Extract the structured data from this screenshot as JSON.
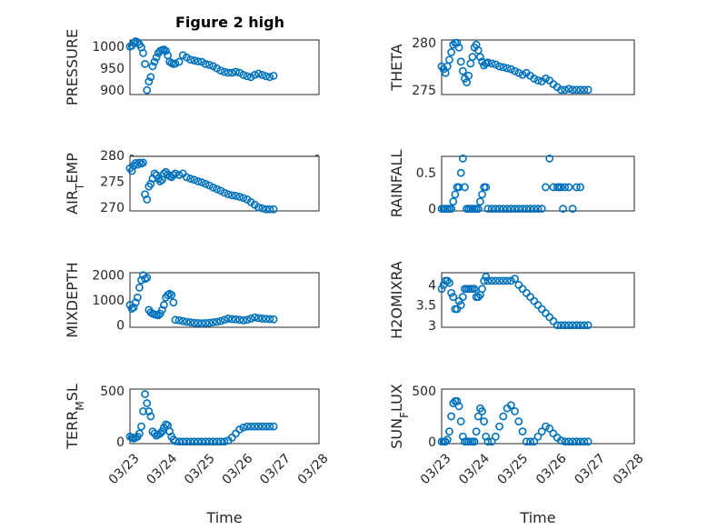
{
  "figure_title": "Figure 2 high",
  "colors": {
    "marker": "#0072BD"
  },
  "chart_data": [
    {
      "type": "scatter",
      "title": "Figure 2 high",
      "ylabel": "PRESSURE",
      "ylim": [
        890,
        1015
      ],
      "yticks": [
        900,
        950,
        1000
      ],
      "xlabel": "",
      "show_xticklabels": false,
      "x_start": "03/23",
      "x_end": "03/28",
      "grid": true,
      "x": [
        0,
        0.05,
        0.1,
        0.15,
        0.2,
        0.25,
        0.3,
        0.35,
        0.4,
        0.45,
        0.5,
        0.55,
        0.6,
        0.65,
        0.7,
        0.75,
        0.8,
        0.85,
        0.9,
        0.95,
        1.0,
        1.05,
        1.1,
        1.15,
        1.2,
        1.3,
        1.4,
        1.5,
        1.6,
        1.7,
        1.8,
        1.9,
        2.0,
        2.1,
        2.2,
        2.3,
        2.4,
        2.5,
        2.6,
        2.7,
        2.8,
        2.9,
        3.0,
        3.1,
        3.2,
        3.3,
        3.4,
        3.5,
        3.6,
        3.7,
        3.8
      ],
      "y": [
        1000,
        1002,
        1008,
        1012,
        1010,
        1005,
        998,
        985,
        960,
        900,
        920,
        930,
        955,
        965,
        975,
        985,
        990,
        992,
        993,
        990,
        980,
        965,
        962,
        960,
        961,
        965,
        980,
        975,
        970,
        968,
        966,
        965,
        960,
        958,
        955,
        950,
        945,
        942,
        940,
        940,
        942,
        940,
        935,
        932,
        930,
        935,
        938,
        935,
        932,
        930,
        933
      ]
    },
    {
      "type": "scatter",
      "ylabel": "THETA",
      "ylim": [
        274.5,
        280.3
      ],
      "yticks": [
        275,
        280
      ],
      "xlabel": "",
      "show_xticklabels": false,
      "x_start": "03/23",
      "x_end": "03/28",
      "grid": true,
      "x": [
        0,
        0.05,
        0.1,
        0.15,
        0.2,
        0.25,
        0.3,
        0.35,
        0.4,
        0.45,
        0.5,
        0.55,
        0.6,
        0.65,
        0.7,
        0.75,
        0.8,
        0.85,
        0.9,
        0.95,
        1.0,
        1.05,
        1.1,
        1.15,
        1.2,
        1.3,
        1.4,
        1.5,
        1.6,
        1.7,
        1.8,
        1.9,
        2.0,
        2.1,
        2.2,
        2.3,
        2.4,
        2.5,
        2.6,
        2.7,
        2.8,
        2.9,
        3.0,
        3.1,
        3.2,
        3.3,
        3.4,
        3.5,
        3.6,
        3.7,
        3.8
      ],
      "y": [
        277.5,
        277.2,
        276.8,
        277.5,
        278.2,
        279.0,
        279.8,
        280.0,
        280.0,
        279.5,
        278.0,
        277.0,
        276.2,
        275.8,
        276.5,
        277.8,
        278.5,
        279.5,
        279.8,
        279.2,
        278.5,
        278.0,
        277.6,
        277.8,
        277.9,
        277.8,
        277.7,
        277.5,
        277.4,
        277.3,
        277.2,
        277.0,
        276.8,
        276.6,
        276.8,
        276.5,
        276.2,
        276.0,
        275.9,
        276.2,
        276.0,
        275.6,
        275.3,
        275.0,
        275.0,
        275.1,
        275.0,
        275.0,
        275.0,
        275.0,
        275.0
      ]
    },
    {
      "type": "scatter",
      "ylabel": "AIR_TEMP",
      "ylim": [
        269.3,
        279.8
      ],
      "yticks": [
        270,
        275,
        280
      ],
      "xlabel": "",
      "show_xticklabels": false,
      "x_start": "03/23",
      "x_end": "03/28",
      "grid": true,
      "x": [
        0,
        0.05,
        0.1,
        0.15,
        0.2,
        0.25,
        0.3,
        0.35,
        0.4,
        0.45,
        0.5,
        0.55,
        0.6,
        0.65,
        0.7,
        0.75,
        0.8,
        0.85,
        0.9,
        0.95,
        1.0,
        1.05,
        1.1,
        1.15,
        1.2,
        1.3,
        1.4,
        1.5,
        1.6,
        1.7,
        1.8,
        1.9,
        2.0,
        2.1,
        2.2,
        2.3,
        2.4,
        2.5,
        2.6,
        2.7,
        2.8,
        2.9,
        3.0,
        3.1,
        3.2,
        3.3,
        3.4,
        3.5,
        3.6,
        3.7,
        3.8
      ],
      "y": [
        277.5,
        277.0,
        278.0,
        278.5,
        278.2,
        278.6,
        278.4,
        278.6,
        272.5,
        271.5,
        274.0,
        274.5,
        275.5,
        276.5,
        276.2,
        275.5,
        275.0,
        275.3,
        276.5,
        276.8,
        276.3,
        276.0,
        275.8,
        276.2,
        276.5,
        276.2,
        276.5,
        275.8,
        275.5,
        275.3,
        275.0,
        274.8,
        274.5,
        274.2,
        273.8,
        273.5,
        273.2,
        272.8,
        272.5,
        272.3,
        272.2,
        272.0,
        271.8,
        271.5,
        271.0,
        270.5,
        270.0,
        269.8,
        269.6,
        269.6,
        269.6
      ]
    },
    {
      "type": "scatter",
      "ylabel": "RAINFALL",
      "ylim": [
        -0.03,
        0.73
      ],
      "yticks": [
        0,
        0.5
      ],
      "xlabel": "",
      "show_xticklabels": false,
      "x_start": "03/23",
      "x_end": "03/28",
      "grid": true,
      "x": [
        0,
        0.05,
        0.1,
        0.15,
        0.2,
        0.25,
        0.3,
        0.35,
        0.4,
        0.45,
        0.5,
        0.55,
        0.6,
        0.65,
        0.7,
        0.75,
        0.8,
        0.85,
        0.9,
        0.95,
        1.0,
        1.05,
        1.1,
        1.15,
        1.2,
        1.3,
        1.4,
        1.5,
        1.6,
        1.7,
        1.8,
        1.9,
        2.0,
        2.1,
        2.2,
        2.3,
        2.4,
        2.5,
        2.6,
        2.7,
        2.8,
        2.9,
        3.0,
        3.05,
        3.1,
        3.15,
        3.2,
        3.3,
        3.4,
        3.5,
        3.6
      ],
      "y": [
        0,
        0,
        0,
        0,
        0,
        0,
        0.1,
        0.2,
        0.3,
        0.3,
        0.5,
        0.7,
        0.3,
        0,
        0,
        0,
        0,
        0,
        0,
        0,
        0.1,
        0.2,
        0.3,
        0.3,
        0,
        0,
        0,
        0,
        0,
        0,
        0,
        0,
        0,
        0,
        0,
        0,
        0,
        0,
        0,
        0.3,
        0.7,
        0.3,
        0.3,
        0.3,
        0.3,
        0,
        0.3,
        0.3,
        0,
        0.3,
        0.3
      ]
    },
    {
      "type": "scatter",
      "ylabel": "MIXDEPTH",
      "ylim": [
        -100,
        2100
      ],
      "yticks": [
        0,
        1000,
        2000
      ],
      "xlabel": "",
      "show_xticklabels": false,
      "x_start": "03/23",
      "x_end": "03/28",
      "grid": true,
      "x": [
        0,
        0.05,
        0.1,
        0.15,
        0.2,
        0.25,
        0.3,
        0.35,
        0.4,
        0.45,
        0.5,
        0.55,
        0.6,
        0.65,
        0.7,
        0.75,
        0.8,
        0.85,
        0.9,
        0.95,
        1.0,
        1.05,
        1.1,
        1.15,
        1.2,
        1.3,
        1.4,
        1.5,
        1.6,
        1.7,
        1.8,
        1.9,
        2.0,
        2.1,
        2.2,
        2.3,
        2.4,
        2.5,
        2.6,
        2.7,
        2.8,
        2.9,
        3.0,
        3.1,
        3.2,
        3.3,
        3.4,
        3.5,
        3.6,
        3.7,
        3.8
      ],
      "y": [
        800,
        650,
        700,
        900,
        1100,
        1500,
        1800,
        2000,
        1850,
        1900,
        600,
        500,
        450,
        420,
        400,
        380,
        450,
        600,
        800,
        1100,
        1200,
        1250,
        1200,
        900,
        200,
        180,
        150,
        120,
        100,
        80,
        70,
        60,
        70,
        80,
        100,
        120,
        150,
        200,
        250,
        230,
        220,
        200,
        180,
        200,
        250,
        300,
        270,
        250,
        240,
        230,
        220
      ]
    },
    {
      "type": "scatter",
      "ylabel": "H2OMIXRA",
      "ylim": [
        2.95,
        4.3
      ],
      "yticks": [
        3,
        3.5,
        4
      ],
      "xlabel": "",
      "show_xticklabels": false,
      "x_start": "03/23",
      "x_end": "03/28",
      "grid": true,
      "x": [
        0,
        0.05,
        0.1,
        0.15,
        0.2,
        0.25,
        0.3,
        0.35,
        0.4,
        0.45,
        0.5,
        0.55,
        0.6,
        0.65,
        0.7,
        0.75,
        0.8,
        0.85,
        0.9,
        0.95,
        1.0,
        1.05,
        1.1,
        1.15,
        1.2,
        1.3,
        1.4,
        1.5,
        1.6,
        1.7,
        1.8,
        1.9,
        2.0,
        2.1,
        2.2,
        2.3,
        2.4,
        2.5,
        2.6,
        2.7,
        2.8,
        2.9,
        3.0,
        3.1,
        3.2,
        3.3,
        3.4,
        3.5,
        3.6,
        3.7,
        3.8
      ],
      "y": [
        3.9,
        4.0,
        4.1,
        4.1,
        4.05,
        3.8,
        3.7,
        3.4,
        3.4,
        3.6,
        3.5,
        3.7,
        3.9,
        3.9,
        3.9,
        3.9,
        3.9,
        3.9,
        3.7,
        3.7,
        3.75,
        3.9,
        4.1,
        4.2,
        4.1,
        4.1,
        4.1,
        4.1,
        4.1,
        4.1,
        4.1,
        4.15,
        4.0,
        3.9,
        3.8,
        3.7,
        3.6,
        3.5,
        3.4,
        3.3,
        3.2,
        3.1,
        3.0,
        3.0,
        3.0,
        3.0,
        3.0,
        3.0,
        3.0,
        3.0,
        3.0
      ]
    },
    {
      "type": "scatter",
      "ylabel": "TERR_MSL",
      "ylim": [
        -20,
        520
      ],
      "yticks": [
        0,
        500
      ],
      "xlabel": "Time",
      "show_xticklabels": true,
      "xticklabels": [
        "03/23",
        "03/24",
        "03/25",
        "03/26",
        "03/27",
        "03/28"
      ],
      "x_start": "03/23",
      "x_end": "03/28",
      "grid": true,
      "x": [
        0,
        0.05,
        0.1,
        0.15,
        0.2,
        0.25,
        0.3,
        0.35,
        0.4,
        0.45,
        0.5,
        0.55,
        0.6,
        0.65,
        0.7,
        0.75,
        0.8,
        0.85,
        0.9,
        0.95,
        1.0,
        1.05,
        1.1,
        1.15,
        1.2,
        1.3,
        1.4,
        1.5,
        1.6,
        1.7,
        1.8,
        1.9,
        2.0,
        2.1,
        2.2,
        2.3,
        2.4,
        2.5,
        2.6,
        2.7,
        2.8,
        2.9,
        3.0,
        3.1,
        3.2,
        3.3,
        3.4,
        3.5,
        3.6,
        3.7,
        3.8
      ],
      "y": [
        50,
        40,
        30,
        40,
        50,
        80,
        150,
        300,
        470,
        380,
        300,
        250,
        100,
        80,
        60,
        70,
        80,
        100,
        140,
        170,
        160,
        100,
        50,
        20,
        5,
        0,
        0,
        0,
        0,
        0,
        0,
        0,
        0,
        0,
        0,
        0,
        0,
        0,
        10,
        40,
        80,
        120,
        140,
        150,
        150,
        150,
        150,
        150,
        150,
        150,
        150
      ]
    },
    {
      "type": "scatter",
      "ylabel": "SUN_FLUX",
      "ylim": [
        -20,
        520
      ],
      "yticks": [
        0,
        500
      ],
      "xlabel": "Time",
      "show_xticklabels": true,
      "xticklabels": [
        "03/23",
        "03/24",
        "03/25",
        "03/26",
        "03/27",
        "03/28"
      ],
      "x_start": "03/23",
      "x_end": "03/28",
      "grid": true,
      "x": [
        0,
        0.05,
        0.1,
        0.15,
        0.2,
        0.25,
        0.3,
        0.35,
        0.4,
        0.45,
        0.5,
        0.55,
        0.6,
        0.65,
        0.7,
        0.75,
        0.8,
        0.85,
        0.9,
        0.95,
        1.0,
        1.05,
        1.1,
        1.15,
        1.2,
        1.3,
        1.4,
        1.5,
        1.6,
        1.7,
        1.8,
        1.9,
        2.0,
        2.1,
        2.2,
        2.3,
        2.4,
        2.5,
        2.6,
        2.7,
        2.8,
        2.9,
        3.0,
        3.1,
        3.2,
        3.3,
        3.4,
        3.5,
        3.6,
        3.7,
        3.8
      ],
      "y": [
        0,
        0,
        0,
        20,
        100,
        250,
        380,
        400,
        400,
        350,
        200,
        50,
        0,
        0,
        0,
        0,
        0,
        0,
        100,
        250,
        330,
        300,
        200,
        50,
        0,
        0,
        50,
        150,
        250,
        330,
        360,
        300,
        200,
        100,
        0,
        0,
        0,
        50,
        100,
        150,
        130,
        80,
        40,
        10,
        0,
        0,
        0,
        0,
        0,
        0,
        0
      ]
    }
  ]
}
